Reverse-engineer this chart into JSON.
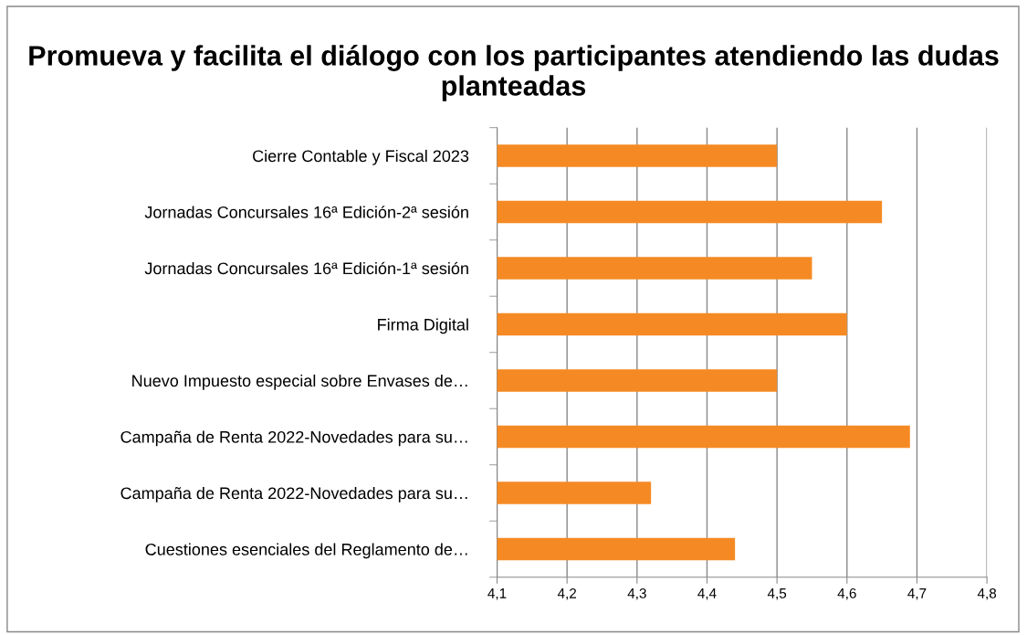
{
  "chart_data": {
    "type": "bar",
    "orientation": "horizontal",
    "title": "Promueva y facilita el diálogo con los participantes atendiendo las dudas planteadas",
    "categories": [
      "Cierre Contable y Fiscal 2023",
      "Jornadas Concursales 16ª Edición-2ª sesión",
      "Jornadas Concursales 16ª Edición-1ª sesión",
      "Firma Digital",
      "Nuevo Impuesto especial sobre Envases de…",
      "Campaña de Renta 2022-Novedades para su…",
      "Campaña de Renta 2022-Novedades para su…",
      "Cuestiones esenciales del Reglamento de…"
    ],
    "values": [
      4.5,
      4.65,
      4.55,
      4.6,
      4.5,
      4.69,
      4.32,
      4.44
    ],
    "color": "#f58a24",
    "xlim": [
      4.1,
      4.8
    ],
    "xticks": [
      {
        "value": 4.1,
        "label": "4,1"
      },
      {
        "value": 4.2,
        "label": "4,2"
      },
      {
        "value": 4.3,
        "label": "4,3"
      },
      {
        "value": 4.4,
        "label": "4,4"
      },
      {
        "value": 4.5,
        "label": "4,5"
      },
      {
        "value": 4.6,
        "label": "4,6"
      },
      {
        "value": 4.7,
        "label": "4,7"
      },
      {
        "value": 4.8,
        "label": "4,8"
      }
    ],
    "grid": "x",
    "legend": false
  }
}
